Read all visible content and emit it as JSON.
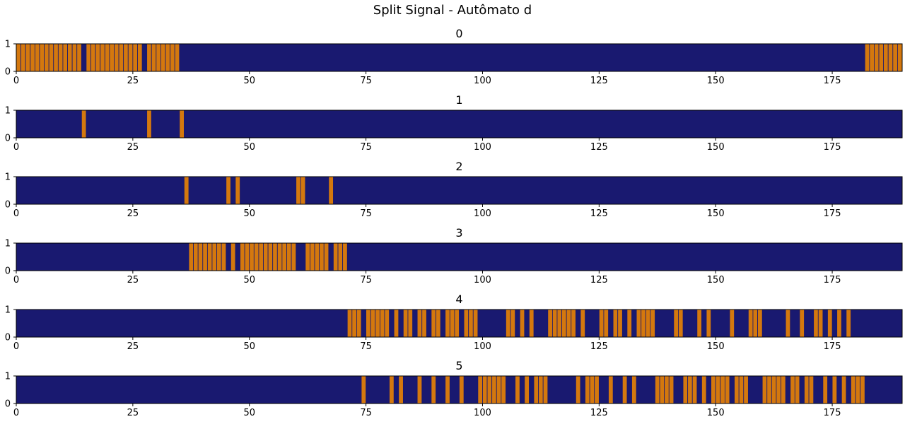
{
  "figure_title": "Split Signal - Autômato d",
  "colors": {
    "background": "#191970",
    "pulse": "#d4780e",
    "frame": "#000000"
  },
  "chart_data": [
    {
      "type": "bar",
      "title": "0",
      "xlim": [
        0,
        190
      ],
      "ylim": [
        0,
        1
      ],
      "xticks": [
        "0",
        "25",
        "50",
        "75",
        "100",
        "125",
        "150",
        "175"
      ],
      "yticks": [
        "0",
        "1"
      ],
      "ones": [
        0,
        1,
        2,
        3,
        4,
        5,
        6,
        7,
        8,
        9,
        10,
        11,
        12,
        13,
        15,
        16,
        17,
        18,
        19,
        20,
        21,
        22,
        23,
        24,
        25,
        26,
        28,
        29,
        30,
        31,
        32,
        33,
        34,
        182,
        183,
        184,
        185,
        186,
        187,
        188,
        189
      ]
    },
    {
      "type": "bar",
      "title": "1",
      "xlim": [
        0,
        190
      ],
      "ylim": [
        0,
        1
      ],
      "xticks": [
        "0",
        "25",
        "50",
        "75",
        "100",
        "125",
        "150",
        "175"
      ],
      "yticks": [
        "0",
        "1"
      ],
      "ones": [
        14,
        28,
        35
      ]
    },
    {
      "type": "bar",
      "title": "2",
      "xlim": [
        0,
        190
      ],
      "ylim": [
        0,
        1
      ],
      "xticks": [
        "0",
        "25",
        "50",
        "75",
        "100",
        "125",
        "150",
        "175"
      ],
      "yticks": [
        "0",
        "1"
      ],
      "ones": [
        36,
        45,
        47,
        60,
        61,
        67
      ]
    },
    {
      "type": "bar",
      "title": "3",
      "xlim": [
        0,
        190
      ],
      "ylim": [
        0,
        1
      ],
      "xticks": [
        "0",
        "25",
        "50",
        "75",
        "100",
        "125",
        "150",
        "175"
      ],
      "yticks": [
        "0",
        "1"
      ],
      "ones": [
        37,
        38,
        39,
        40,
        41,
        42,
        43,
        44,
        46,
        48,
        49,
        50,
        51,
        52,
        53,
        54,
        55,
        56,
        57,
        58,
        59,
        62,
        63,
        64,
        65,
        66,
        68,
        69,
        70
      ]
    },
    {
      "type": "bar",
      "title": "4",
      "xlim": [
        0,
        190
      ],
      "ylim": [
        0,
        1
      ],
      "xticks": [
        "0",
        "25",
        "50",
        "75",
        "100",
        "125",
        "150",
        "175"
      ],
      "yticks": [
        "0",
        "1"
      ],
      "ones": [
        71,
        72,
        73,
        75,
        76,
        77,
        78,
        79,
        81,
        83,
        84,
        86,
        87,
        89,
        90,
        92,
        93,
        94,
        96,
        97,
        98,
        105,
        106,
        108,
        110,
        114,
        115,
        116,
        117,
        118,
        119,
        121,
        125,
        126,
        128,
        129,
        131,
        133,
        134,
        135,
        136,
        141,
        142,
        146,
        148,
        153,
        157,
        158,
        159,
        165,
        168,
        171,
        172,
        174,
        176,
        178
      ]
    },
    {
      "type": "bar",
      "title": "5",
      "xlim": [
        0,
        190
      ],
      "ylim": [
        0,
        1
      ],
      "xticks": [
        "0",
        "25",
        "50",
        "75",
        "100",
        "125",
        "150",
        "175"
      ],
      "yticks": [
        "0",
        "1"
      ],
      "ones": [
        74,
        80,
        82,
        86,
        89,
        92,
        95,
        99,
        100,
        101,
        102,
        103,
        104,
        107,
        109,
        111,
        112,
        113,
        120,
        122,
        123,
        124,
        127,
        130,
        132,
        137,
        138,
        139,
        140,
        143,
        144,
        145,
        147,
        149,
        150,
        151,
        152,
        154,
        155,
        156,
        160,
        161,
        162,
        163,
        164,
        166,
        167,
        169,
        170,
        173,
        175,
        177,
        179,
        180,
        181
      ]
    }
  ]
}
